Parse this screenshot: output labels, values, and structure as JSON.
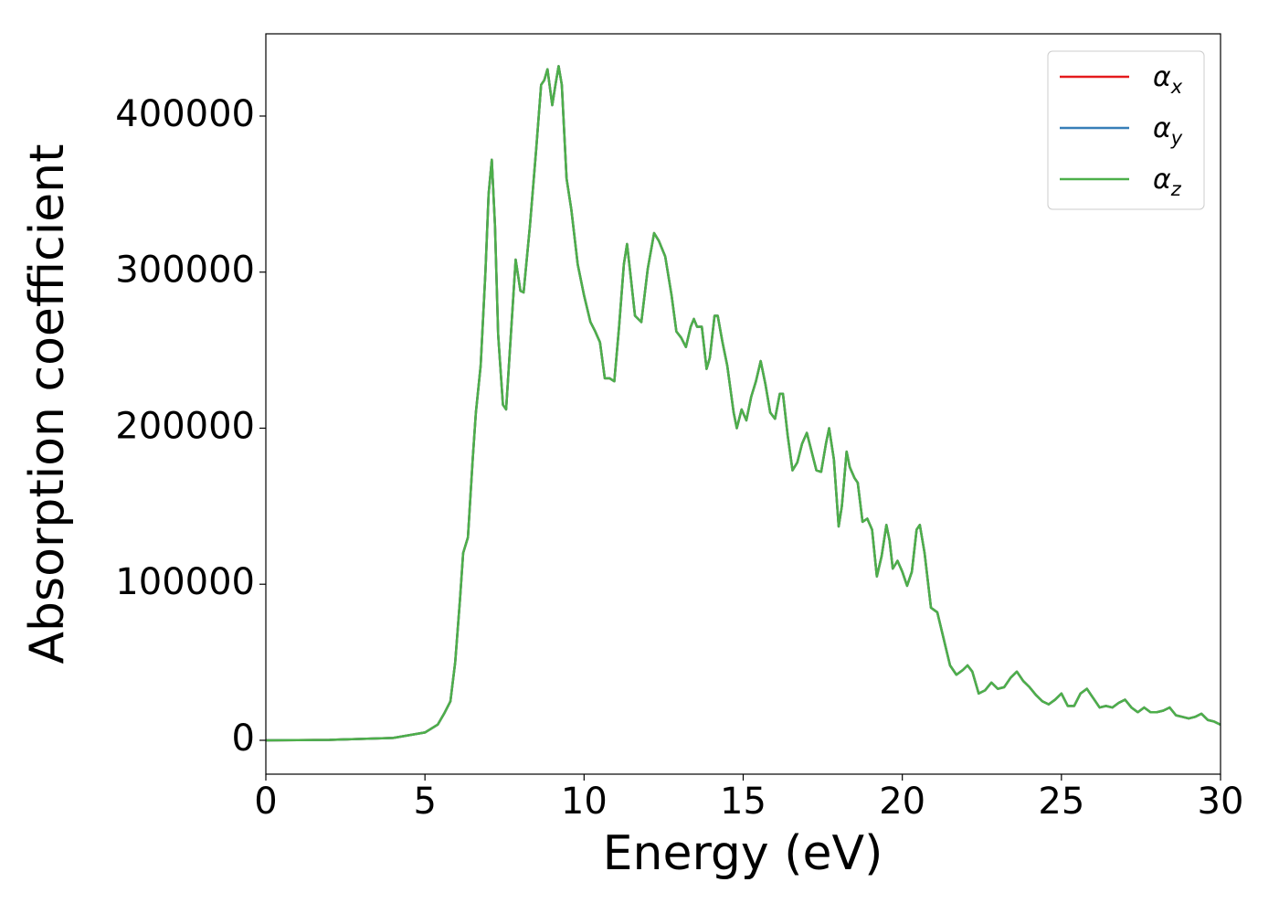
{
  "chart_data": {
    "type": "line",
    "xlabel": "Energy (eV)",
    "ylabel": "Absorption coefficient",
    "xlim": [
      0,
      30
    ],
    "ylim": [
      -21700,
      452700
    ],
    "xticks": [
      0,
      5,
      10,
      15,
      20,
      25,
      30
    ],
    "yticks": [
      0,
      100000,
      200000,
      300000,
      400000
    ],
    "legend": "upper right",
    "x": [
      0,
      2,
      4,
      5,
      5.4,
      5.6,
      5.8,
      5.95,
      6.1,
      6.2,
      6.35,
      6.5,
      6.6,
      6.75,
      6.9,
      7.0,
      7.1,
      7.2,
      7.3,
      7.45,
      7.55,
      7.7,
      7.85,
      8.0,
      8.1,
      8.3,
      8.5,
      8.65,
      8.75,
      8.85,
      9.0,
      9.1,
      9.2,
      9.3,
      9.45,
      9.6,
      9.8,
      10.0,
      10.2,
      10.35,
      10.5,
      10.65,
      10.8,
      10.95,
      11.1,
      11.25,
      11.35,
      11.45,
      11.6,
      11.8,
      12.0,
      12.2,
      12.35,
      12.55,
      12.75,
      12.9,
      13.05,
      13.2,
      13.35,
      13.45,
      13.55,
      13.7,
      13.85,
      13.95,
      14.1,
      14.2,
      14.35,
      14.5,
      14.7,
      14.8,
      14.95,
      15.1,
      15.25,
      15.4,
      15.55,
      15.7,
      15.85,
      16.0,
      16.15,
      16.25,
      16.4,
      16.55,
      16.7,
      16.85,
      17.0,
      17.15,
      17.3,
      17.45,
      17.6,
      17.7,
      17.85,
      18.0,
      18.1,
      18.25,
      18.35,
      18.5,
      18.6,
      18.75,
      18.9,
      19.05,
      19.2,
      19.35,
      19.5,
      19.6,
      19.7,
      19.85,
      20.0,
      20.15,
      20.3,
      20.45,
      20.55,
      20.7,
      20.9,
      21.1,
      21.3,
      21.5,
      21.7,
      21.9,
      22.05,
      22.2,
      22.4,
      22.6,
      22.8,
      23.0,
      23.2,
      23.4,
      23.6,
      23.8,
      24.0,
      24.2,
      24.4,
      24.6,
      24.8,
      25.0,
      25.2,
      25.4,
      25.6,
      25.8,
      26.0,
      26.2,
      26.4,
      26.6,
      26.8,
      27.0,
      27.2,
      27.4,
      27.6,
      27.8,
      28.0,
      28.2,
      28.4,
      28.6,
      28.8,
      29.0,
      29.2,
      29.4,
      29.6,
      29.8,
      30
    ],
    "series": [
      {
        "name": "αx",
        "color": "#e41a1c",
        "values": [
          0,
          300,
          1500,
          5000,
          10000,
          17000,
          25000,
          50000,
          90000,
          120000,
          130000,
          180000,
          210000,
          240000,
          300000,
          350000,
          372000,
          330000,
          260000,
          215000,
          212000,
          260000,
          308000,
          288000,
          287000,
          330000,
          380000,
          420000,
          423000,
          430000,
          407000,
          420000,
          432000,
          420000,
          360000,
          340000,
          305000,
          285000,
          268000,
          262000,
          255000,
          232000,
          232000,
          230000,
          265000,
          305000,
          318000,
          300000,
          272000,
          268000,
          302000,
          325000,
          320000,
          310000,
          285000,
          262000,
          258000,
          252000,
          265000,
          270000,
          265000,
          265000,
          238000,
          245000,
          272000,
          272000,
          255000,
          240000,
          210000,
          200000,
          212000,
          205000,
          220000,
          230000,
          243000,
          228000,
          210000,
          206000,
          222000,
          222000,
          195000,
          173000,
          178000,
          190000,
          197000,
          185000,
          173000,
          172000,
          190000,
          200000,
          180000,
          137000,
          150000,
          185000,
          175000,
          168000,
          165000,
          140000,
          142000,
          135000,
          105000,
          118000,
          138000,
          128000,
          110000,
          115000,
          108000,
          99000,
          108000,
          135000,
          138000,
          120000,
          85000,
          82000,
          65000,
          48000,
          42000,
          45000,
          48000,
          44000,
          30000,
          32000,
          37000,
          33000,
          34000,
          40000,
          44000,
          38000,
          34000,
          29000,
          25000,
          23000,
          26000,
          30000,
          22000,
          22000,
          30000,
          33000,
          27000,
          21000,
          22000,
          21000,
          24000,
          26000,
          21000,
          18000,
          21000,
          18000,
          18000,
          19000,
          21000,
          16000,
          15000,
          14000,
          15000,
          17000,
          13000,
          12000,
          10000
        ]
      },
      {
        "name": "αy",
        "color": "#377eb8",
        "values": [
          0,
          300,
          1500,
          5000,
          10000,
          17000,
          25000,
          50000,
          90000,
          120000,
          130000,
          180000,
          210000,
          240000,
          300000,
          350000,
          372000,
          330000,
          260000,
          215000,
          212000,
          260000,
          308000,
          288000,
          287000,
          330000,
          380000,
          420000,
          423000,
          430000,
          407000,
          420000,
          432000,
          420000,
          360000,
          340000,
          305000,
          285000,
          268000,
          262000,
          255000,
          232000,
          232000,
          230000,
          265000,
          305000,
          318000,
          300000,
          272000,
          268000,
          302000,
          325000,
          320000,
          310000,
          285000,
          262000,
          258000,
          252000,
          265000,
          270000,
          265000,
          265000,
          238000,
          245000,
          272000,
          272000,
          255000,
          240000,
          210000,
          200000,
          212000,
          205000,
          220000,
          230000,
          243000,
          228000,
          210000,
          206000,
          222000,
          222000,
          195000,
          173000,
          178000,
          190000,
          197000,
          185000,
          173000,
          172000,
          190000,
          200000,
          180000,
          137000,
          150000,
          185000,
          175000,
          168000,
          165000,
          140000,
          142000,
          135000,
          105000,
          118000,
          138000,
          128000,
          110000,
          115000,
          108000,
          99000,
          108000,
          135000,
          138000,
          120000,
          85000,
          82000,
          65000,
          48000,
          42000,
          45000,
          48000,
          44000,
          30000,
          32000,
          37000,
          33000,
          34000,
          40000,
          44000,
          38000,
          34000,
          29000,
          25000,
          23000,
          26000,
          30000,
          22000,
          22000,
          30000,
          33000,
          27000,
          21000,
          22000,
          21000,
          24000,
          26000,
          21000,
          18000,
          21000,
          18000,
          18000,
          19000,
          21000,
          16000,
          15000,
          14000,
          15000,
          17000,
          13000,
          12000,
          10000
        ]
      },
      {
        "name": "αz",
        "color": "#4daf4a",
        "values": [
          0,
          300,
          1500,
          5000,
          10000,
          17000,
          25000,
          50000,
          90000,
          120000,
          130000,
          180000,
          210000,
          240000,
          300000,
          350000,
          372000,
          330000,
          260000,
          215000,
          212000,
          260000,
          308000,
          288000,
          287000,
          330000,
          380000,
          420000,
          423000,
          430000,
          407000,
          420000,
          432000,
          420000,
          360000,
          340000,
          305000,
          285000,
          268000,
          262000,
          255000,
          232000,
          232000,
          230000,
          265000,
          305000,
          318000,
          300000,
          272000,
          268000,
          302000,
          325000,
          320000,
          310000,
          285000,
          262000,
          258000,
          252000,
          265000,
          270000,
          265000,
          265000,
          238000,
          245000,
          272000,
          272000,
          255000,
          240000,
          210000,
          200000,
          212000,
          205000,
          220000,
          230000,
          243000,
          228000,
          210000,
          206000,
          222000,
          222000,
          195000,
          173000,
          178000,
          190000,
          197000,
          185000,
          173000,
          172000,
          190000,
          200000,
          180000,
          137000,
          150000,
          185000,
          175000,
          168000,
          165000,
          140000,
          142000,
          135000,
          105000,
          118000,
          138000,
          128000,
          110000,
          115000,
          108000,
          99000,
          108000,
          135000,
          138000,
          120000,
          85000,
          82000,
          65000,
          48000,
          42000,
          45000,
          48000,
          44000,
          30000,
          32000,
          37000,
          33000,
          34000,
          40000,
          44000,
          38000,
          34000,
          29000,
          25000,
          23000,
          26000,
          30000,
          22000,
          22000,
          30000,
          33000,
          27000,
          21000,
          22000,
          21000,
          24000,
          26000,
          21000,
          18000,
          21000,
          18000,
          18000,
          19000,
          21000,
          16000,
          15000,
          14000,
          15000,
          17000,
          13000,
          12000,
          10000
        ]
      }
    ]
  }
}
